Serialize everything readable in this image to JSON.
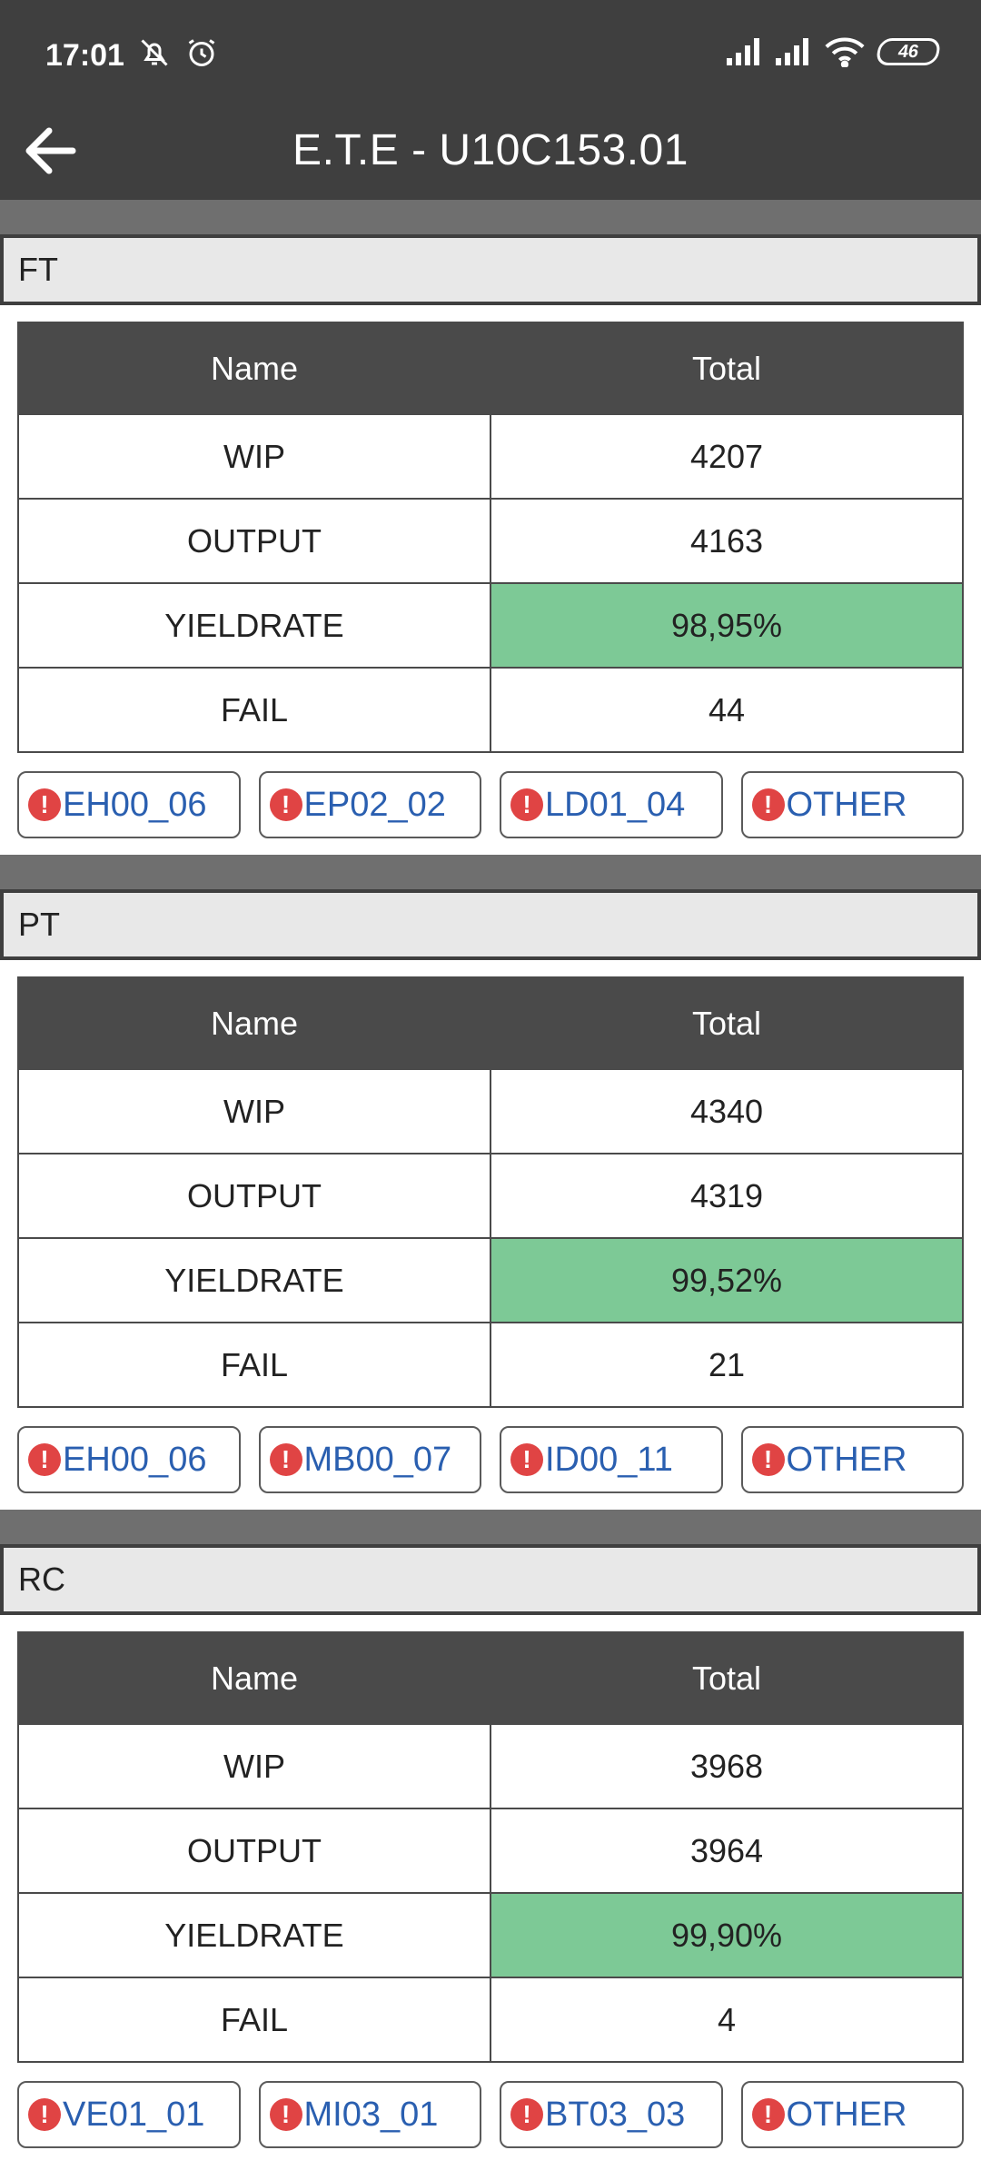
{
  "status_bar": {
    "time": "17:01",
    "battery": "46"
  },
  "app_bar": {
    "title": "E.T.E - U10C153.01"
  },
  "table_headers": {
    "name": "Name",
    "total": "Total"
  },
  "sections": [
    {
      "title": "FT",
      "rows": [
        {
          "name": "WIP",
          "total": "4207"
        },
        {
          "name": "OUTPUT",
          "total": "4163"
        },
        {
          "name": "YIELDRATE",
          "total": "98,95%"
        },
        {
          "name": "FAIL",
          "total": "44"
        }
      ],
      "chips": [
        "EH00_06",
        "EP02_02",
        "LD01_04",
        "OTHER"
      ]
    },
    {
      "title": "PT",
      "rows": [
        {
          "name": "WIP",
          "total": "4340"
        },
        {
          "name": "OUTPUT",
          "total": "4319"
        },
        {
          "name": "YIELDRATE",
          "total": "99,52%"
        },
        {
          "name": "FAIL",
          "total": "21"
        }
      ],
      "chips": [
        "EH00_06",
        "MB00_07",
        "ID00_11",
        "OTHER"
      ]
    },
    {
      "title": "RC",
      "rows": [
        {
          "name": "WIP",
          "total": "3968"
        },
        {
          "name": "OUTPUT",
          "total": "3964"
        },
        {
          "name": "YIELDRATE",
          "total": "99,90%"
        },
        {
          "name": "FAIL",
          "total": "4"
        }
      ],
      "chips": [
        "VE01_01",
        "MI03_01",
        "BT03_03",
        "OTHER"
      ]
    }
  ],
  "colors": {
    "app_bar": "#3f3f3f",
    "yield_good": "#7dc996",
    "chip_text": "#2a5fb0",
    "alert_icon": "#e04444"
  },
  "icons": {
    "back": "arrow-left-icon",
    "alert": "exclamation-circle-icon"
  }
}
